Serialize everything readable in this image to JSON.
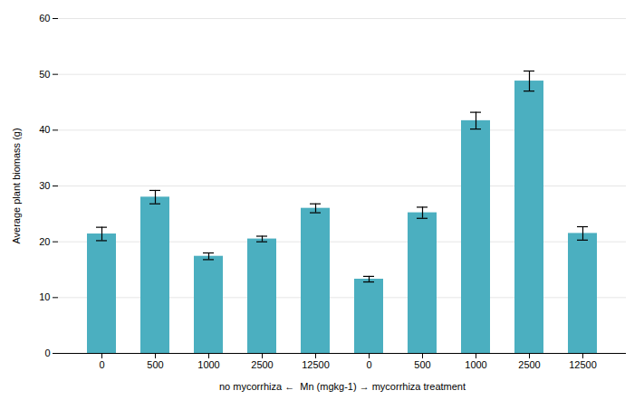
{
  "chart_data": {
    "type": "bar",
    "categories": [
      "0",
      "500",
      "1000",
      "2500",
      "12500",
      "0",
      "500",
      "1000",
      "2500",
      "12500"
    ],
    "values": [
      21.4,
      28.0,
      17.4,
      20.5,
      26.0,
      13.3,
      25.2,
      41.7,
      48.8,
      21.5
    ],
    "errors": [
      1.2,
      1.2,
      0.6,
      0.5,
      0.8,
      0.5,
      1.0,
      1.5,
      1.8,
      1.2
    ],
    "color": "#4BAFC0",
    "xlabel": "no mycorrhiza ←  Mn (mgkg-1) → mycorrhiza treatment",
    "ylabel": "Average plant biomass (g)",
    "ylim": [
      0,
      60
    ],
    "yticks": [
      0,
      10,
      20,
      30,
      40,
      50,
      60
    ],
    "grid": true
  }
}
